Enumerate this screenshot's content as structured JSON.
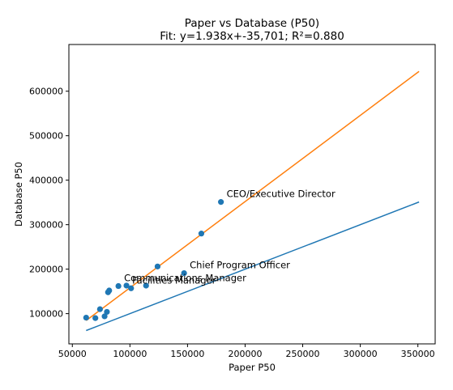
{
  "chart_data": {
    "type": "scatter",
    "title": "Paper vs Database (P50)",
    "subtitle": "Fit: y=1.938x+-35,701; R²=0.880",
    "xlabel": "Paper P50",
    "ylabel": "Database P50",
    "xlim": [
      47000,
      365000
    ],
    "ylim": [
      32000,
      705000
    ],
    "x_ticks": [
      50000,
      100000,
      150000,
      200000,
      250000,
      300000,
      350000
    ],
    "x_tick_labels": [
      "50000",
      "100000",
      "150000",
      "200000",
      "250000",
      "300000",
      "350000"
    ],
    "y_ticks": [
      100000,
      200000,
      300000,
      400000,
      500000,
      600000
    ],
    "y_tick_labels": [
      "100000",
      "200000",
      "300000",
      "400000",
      "500000",
      "600000"
    ],
    "grid": false,
    "colors": {
      "points": "#1f77b4",
      "identity_line": "#1f77b4",
      "fit_line": "#ff7f0e"
    },
    "points": [
      {
        "x": 62000,
        "y": 91000
      },
      {
        "x": 70000,
        "y": 90000
      },
      {
        "x": 74000,
        "y": 110000
      },
      {
        "x": 78000,
        "y": 94000
      },
      {
        "x": 80000,
        "y": 104000
      },
      {
        "x": 81000,
        "y": 148000
      },
      {
        "x": 82000,
        "y": 152000
      },
      {
        "x": 90000,
        "y": 162000
      },
      {
        "x": 97000,
        "y": 163000
      },
      {
        "x": 101000,
        "y": 157000
      },
      {
        "x": 114000,
        "y": 163000
      },
      {
        "x": 124000,
        "y": 206000
      },
      {
        "x": 147000,
        "y": 191000
      },
      {
        "x": 162000,
        "y": 280000
      },
      {
        "x": 179000,
        "y": 351000
      }
    ],
    "identity_line": {
      "x": [
        62000,
        351000
      ],
      "y": [
        62000,
        351000
      ]
    },
    "fit_line": {
      "x": [
        62000,
        351000
      ],
      "y": [
        84455,
        644537
      ]
    },
    "annotations": [
      {
        "text": "CEO/Executive Director",
        "x": 179000,
        "y": 351000
      },
      {
        "text": "Chief Program Officer",
        "x": 147000,
        "y": 191000
      },
      {
        "text": "Communications Manager",
        "x": 90000,
        "y": 162000
      },
      {
        "text": "Facilities Manager",
        "x": 97000,
        "y": 157000
      }
    ]
  }
}
